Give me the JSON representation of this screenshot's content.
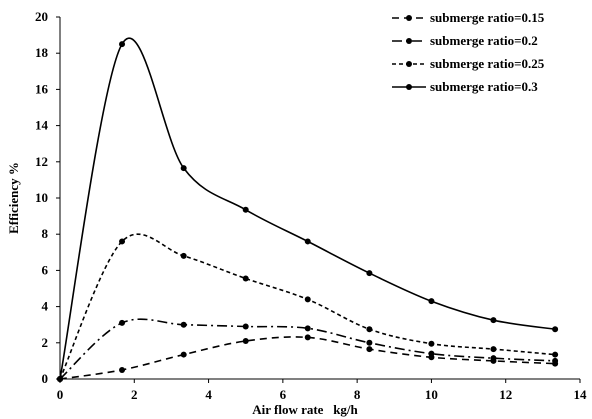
{
  "chart_data": {
    "type": "line",
    "title": "",
    "xlabel": "Air flow rate   kg/h",
    "ylabel": "Efficiency  %",
    "xlim": [
      0,
      14
    ],
    "ylim": [
      0,
      20
    ],
    "xticks": [
      0,
      2,
      4,
      6,
      8,
      10,
      12,
      14
    ],
    "yticks": [
      0,
      2,
      4,
      6,
      8,
      10,
      12,
      14,
      16,
      18,
      20
    ],
    "grid": false,
    "legend_position": "top-right",
    "series": [
      {
        "name": "submerge ratio=0.15",
        "style": "dashed",
        "color": "#000000",
        "x": [
          0,
          1.67,
          3.33,
          5.0,
          6.67,
          8.33,
          10.0,
          11.67,
          13.33
        ],
        "y": [
          0,
          0.5,
          1.35,
          2.1,
          2.3,
          1.65,
          1.2,
          1.0,
          0.85
        ]
      },
      {
        "name": "submerge ratio=0.2",
        "style": "dashdot",
        "color": "#000000",
        "x": [
          0,
          1.67,
          3.33,
          5.0,
          6.67,
          8.33,
          10.0,
          11.67,
          13.33
        ],
        "y": [
          0,
          3.1,
          3.0,
          2.9,
          2.8,
          2.0,
          1.4,
          1.15,
          1.0
        ]
      },
      {
        "name": "submerge ratio=0.25",
        "style": "short-dashed",
        "color": "#000000",
        "x": [
          0,
          1.67,
          3.33,
          5.0,
          6.67,
          8.33,
          10.0,
          11.67,
          13.33
        ],
        "y": [
          0,
          7.6,
          6.8,
          5.55,
          4.4,
          2.75,
          1.95,
          1.65,
          1.35
        ]
      },
      {
        "name": "submerge ratio=0.3",
        "style": "solid",
        "color": "#000000",
        "x": [
          0,
          1.67,
          3.33,
          5.0,
          6.67,
          8.33,
          10.0,
          11.67,
          13.33
        ],
        "y": [
          0,
          18.5,
          11.65,
          9.35,
          7.6,
          5.85,
          4.3,
          3.25,
          2.75
        ]
      }
    ]
  }
}
